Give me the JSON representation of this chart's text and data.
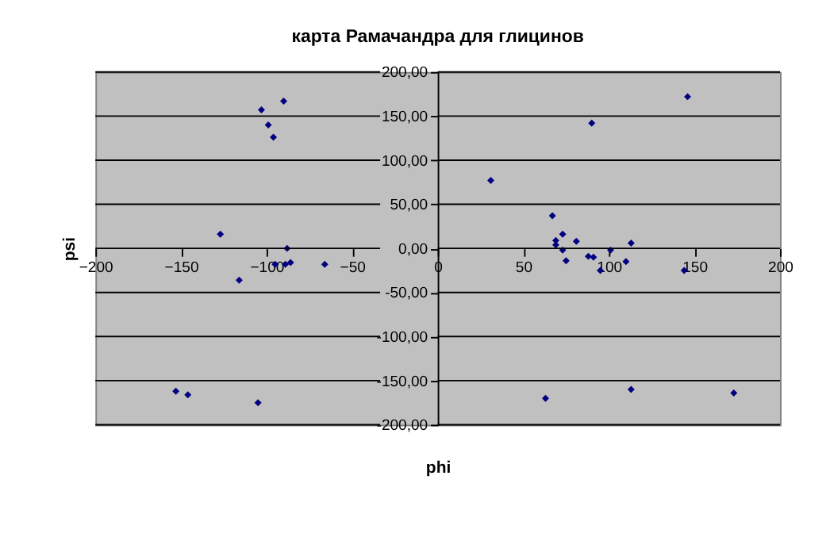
{
  "chart_data": {
    "type": "scatter",
    "title": "карта Рамачандра для глицинов",
    "xlabel": "phi",
    "ylabel": "psi",
    "xlim": [
      -200,
      200
    ],
    "xticks": [
      -200,
      -150,
      -100,
      -50,
      0,
      50,
      100,
      150,
      200
    ],
    "ylim": [
      -200,
      200
    ],
    "yticks": [
      {
        "value": -200,
        "label": "-200,00"
      },
      {
        "value": -150,
        "label": "-150,00"
      },
      {
        "value": -100,
        "label": "-100,00"
      },
      {
        "value": -50,
        "label": "-50,00"
      },
      {
        "value": 0,
        "label": "0,00"
      },
      {
        "value": 50,
        "label": "50,00"
      },
      {
        "value": 100,
        "label": "100,00"
      },
      {
        "value": 150,
        "label": "150,00"
      },
      {
        "value": 200,
        "label": "200,00"
      }
    ],
    "grid": "y",
    "marker": "diamond",
    "series": [
      {
        "color": "#000080",
        "x": [
          -103,
          -90,
          -99,
          -96,
          -127,
          -88,
          -116,
          -95,
          -89,
          -86,
          -66,
          146,
          90,
          31,
          67,
          69,
          69,
          73,
          73,
          75,
          81,
          88,
          91,
          95,
          101,
          110,
          113,
          144,
          -153,
          -146,
          -105,
          63,
          113,
          173
        ],
        "values": [
          157,
          167,
          140,
          126,
          16,
          0,
          -36,
          -18,
          -18,
          -16,
          -18,
          172,
          142,
          77,
          37,
          9,
          4,
          16,
          -2,
          -14,
          8,
          -9,
          -10,
          -25,
          -2,
          -15,
          6,
          -25,
          -162,
          -166,
          -175,
          -170,
          -160,
          -164
        ]
      }
    ]
  }
}
